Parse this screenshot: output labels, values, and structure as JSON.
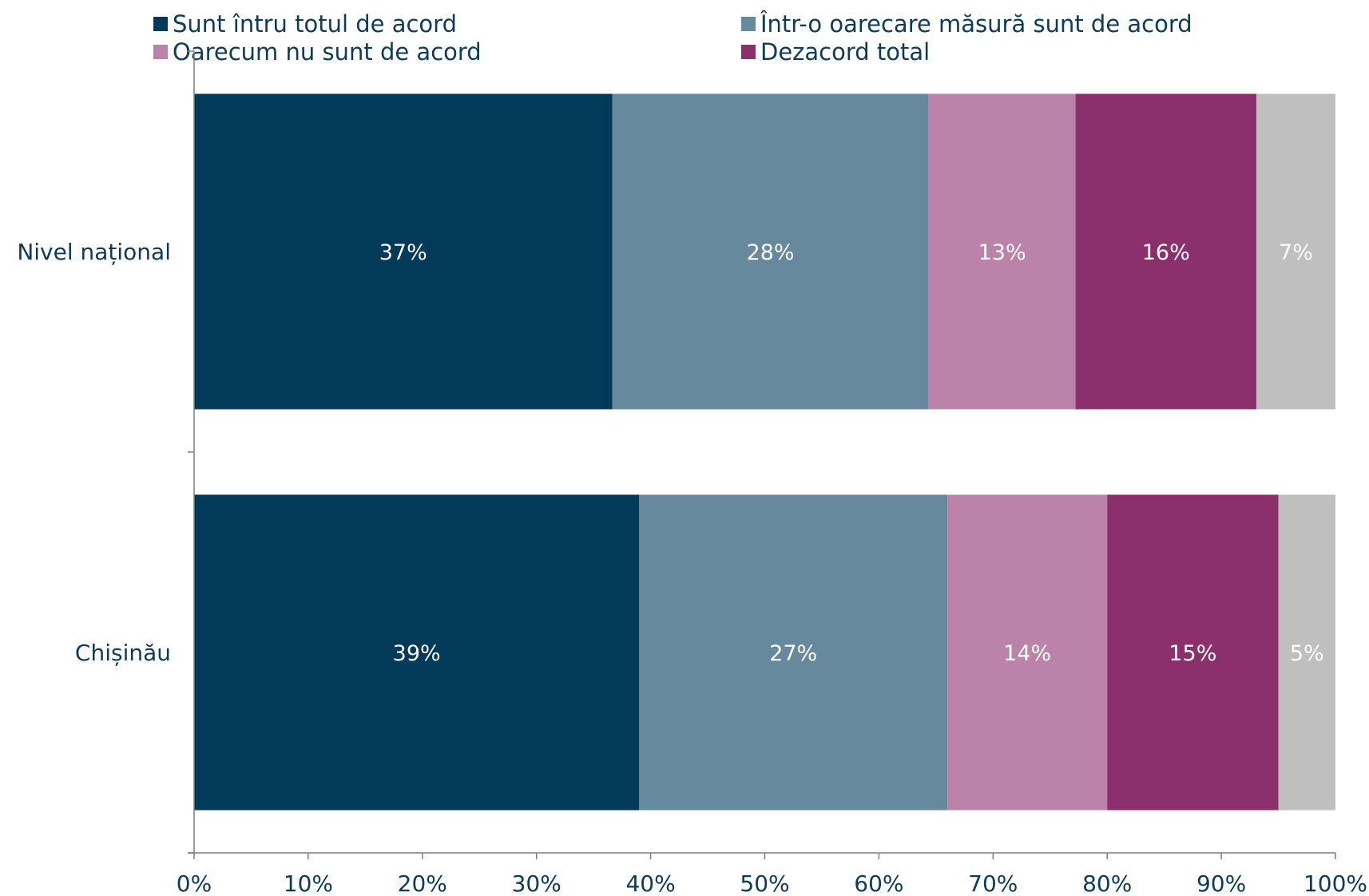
{
  "chart_data": {
    "type": "bar",
    "orientation": "horizontal",
    "stacked": true,
    "categories": [
      "Nivel național",
      "Chișinău"
    ],
    "series": [
      {
        "name": "Sunt întru totul de acord",
        "color": "#023a5a",
        "values": [
          37,
          39
        ],
        "labels": [
          "37%",
          "39%"
        ]
      },
      {
        "name": "Într-o oarecare măsură sunt de acord",
        "color": "#67899d",
        "values": [
          28,
          27
        ],
        "labels": [
          "28%",
          "27%"
        ]
      },
      {
        "name": "Oarecum nu sunt de acord",
        "color": "#bb83a9",
        "values": [
          13,
          14
        ],
        "labels": [
          "13%",
          "14%"
        ]
      },
      {
        "name": "Dezacord total",
        "color": "#8b306c",
        "values": [
          16,
          15
        ],
        "labels": [
          "16%",
          "15%"
        ]
      },
      {
        "name": "",
        "color": "#bfbfbf",
        "values": [
          7,
          5
        ],
        "labels": [
          "7%",
          "5%"
        ]
      }
    ],
    "xlim": [
      0,
      100
    ],
    "x_ticks": [
      "0%",
      "10%",
      "20%",
      "30%",
      "40%",
      "50%",
      "60%",
      "70%",
      "80%",
      "90%",
      "100%"
    ],
    "legend_position": "top",
    "grid": false,
    "text_color": "#0f3b5a",
    "axis_color": "#7f7f7f"
  }
}
